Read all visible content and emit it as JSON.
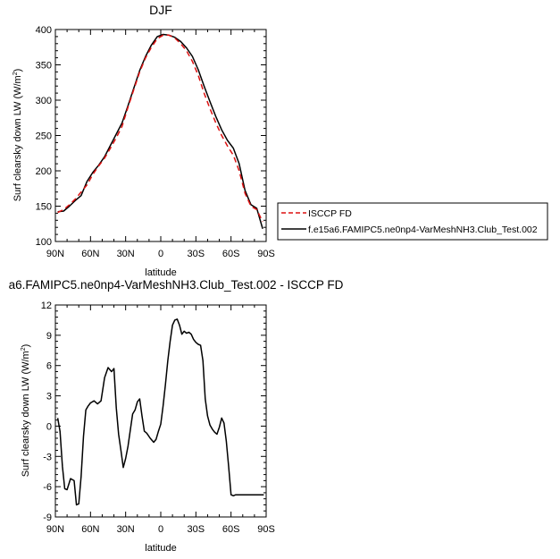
{
  "chart_data": [
    {
      "type": "line",
      "title": "DJF",
      "xlabel": "latitude",
      "ylabel": "Surf clearsky down LW (W/m",
      "ylabel_sup": "2",
      "ylabel_close": ")",
      "xlim": [
        90,
        -90
      ],
      "ylim": [
        100,
        400
      ],
      "x_ticks": [
        90,
        60,
        30,
        0,
        -30,
        -60,
        -90
      ],
      "x_tick_labels": [
        "90N",
        "60N",
        "30N",
        "0",
        "30S",
        "60S",
        "90S"
      ],
      "y_ticks": [
        100,
        150,
        200,
        250,
        300,
        350,
        400
      ],
      "y_tick_labels": [
        "100",
        "150",
        "200",
        "250",
        "300",
        "350",
        "400"
      ],
      "legend_position": "right",
      "series": [
        {
          "name": "ISCCP FD",
          "color": "#dd1111",
          "dash": "dashed",
          "x": [
            88,
            83,
            78,
            73,
            68,
            63,
            58,
            53,
            48,
            43,
            38,
            33,
            28,
            23,
            18,
            13,
            8,
            3,
            -2,
            -7,
            -12,
            -17,
            -22,
            -27,
            -32,
            -37,
            -42,
            -47,
            -52,
            -57,
            -62,
            -67,
            -72,
            -77,
            -82,
            -87
          ],
          "y": [
            141,
            145,
            152,
            160,
            170,
            180,
            195,
            207,
            218,
            232,
            247,
            263,
            290,
            315,
            340,
            360,
            375,
            387,
            392,
            392,
            388,
            380,
            370,
            355,
            335,
            310,
            288,
            268,
            250,
            235,
            222,
            200,
            168,
            150,
            145,
            128
          ]
        },
        {
          "name": "f.e15a6.FAMIPC5.ne0np4-VarMeshNH3.Club_Test.002",
          "color": "#000000",
          "dash": "solid",
          "x": [
            88,
            83,
            78,
            73,
            68,
            63,
            58,
            53,
            48,
            43,
            38,
            33,
            28,
            23,
            18,
            13,
            8,
            3,
            -2,
            -7,
            -12,
            -17,
            -22,
            -27,
            -32,
            -37,
            -42,
            -47,
            -52,
            -57,
            -62,
            -67,
            -72,
            -77,
            -82,
            -87
          ],
          "y": [
            142,
            143,
            150,
            158,
            165,
            185,
            198,
            208,
            220,
            236,
            252,
            268,
            292,
            317,
            342,
            362,
            378,
            390,
            393,
            392,
            389,
            383,
            374,
            362,
            343,
            320,
            298,
            277,
            258,
            243,
            232,
            210,
            172,
            152,
            147,
            118
          ]
        }
      ]
    },
    {
      "type": "line",
      "title": "a6.FAMIPC5.ne0np4-VarMeshNH3.Club_Test.002 - ISCCP FD",
      "xlabel": "latitude",
      "ylabel": "Surf clearsky down LW (W/m",
      "ylabel_sup": "2",
      "ylabel_close": ")",
      "xlim": [
        90,
        -90
      ],
      "ylim": [
        -9,
        12
      ],
      "x_ticks": [
        90,
        60,
        30,
        0,
        -30,
        -60,
        -90
      ],
      "x_tick_labels": [
        "90N",
        "60N",
        "30N",
        "0",
        "30S",
        "60S",
        "90S"
      ],
      "y_ticks": [
        -9,
        -6,
        -3,
        0,
        3,
        6,
        9,
        12
      ],
      "y_tick_labels": [
        "-9",
        "-6",
        "-3",
        "0",
        "3",
        "6",
        "9",
        "12"
      ],
      "series": [
        {
          "color": "#000000",
          "dash": "solid",
          "x": [
            88,
            86,
            84,
            82,
            80,
            77,
            74,
            72,
            70,
            68,
            66,
            64,
            62,
            60,
            57,
            54,
            51,
            48,
            45,
            42,
            40,
            38,
            36,
            34,
            32,
            30,
            28,
            26,
            24,
            22,
            20,
            18,
            16,
            14,
            12,
            9,
            6,
            4,
            2,
            0,
            -2,
            -4,
            -6,
            -8,
            -10,
            -12,
            -14,
            -16,
            -18,
            -20,
            -22,
            -24,
            -26,
            -28,
            -30,
            -32,
            -34,
            -36,
            -38,
            -40,
            -42,
            -44,
            -46,
            -48,
            -50,
            -52,
            -54,
            -56,
            -58,
            -60,
            -62,
            -64,
            -67,
            -70,
            -73,
            -76,
            -79,
            -82,
            -85,
            -88
          ],
          "y": [
            0.8,
            -0.5,
            -4.0,
            -6.2,
            -6.3,
            -5.2,
            -5.4,
            -7.8,
            -7.7,
            -5.0,
            -1.0,
            1.6,
            2.0,
            2.3,
            2.5,
            2.2,
            2.5,
            4.8,
            5.8,
            5.4,
            5.7,
            1.8,
            -0.8,
            -2.4,
            -4.1,
            -3.2,
            -2.0,
            -0.4,
            1.2,
            1.6,
            2.4,
            2.7,
            1.0,
            -0.5,
            -0.7,
            -1.2,
            -1.6,
            -1.3,
            -0.5,
            0.2,
            2.0,
            4.1,
            6.5,
            8.4,
            10.0,
            10.5,
            10.6,
            10.0,
            9.1,
            9.4,
            9.2,
            9.3,
            9.1,
            8.6,
            8.3,
            8.1,
            8.0,
            6.5,
            2.7,
            1.0,
            0.1,
            -0.3,
            -0.6,
            -0.8,
            -0.1,
            0.8,
            0.3,
            -1.5,
            -4.0,
            -6.8,
            -6.9,
            -6.8,
            -6.8,
            -6.8,
            -6.8,
            -6.8,
            -6.8,
            -6.8,
            -6.8,
            -6.8
          ]
        }
      ]
    }
  ]
}
